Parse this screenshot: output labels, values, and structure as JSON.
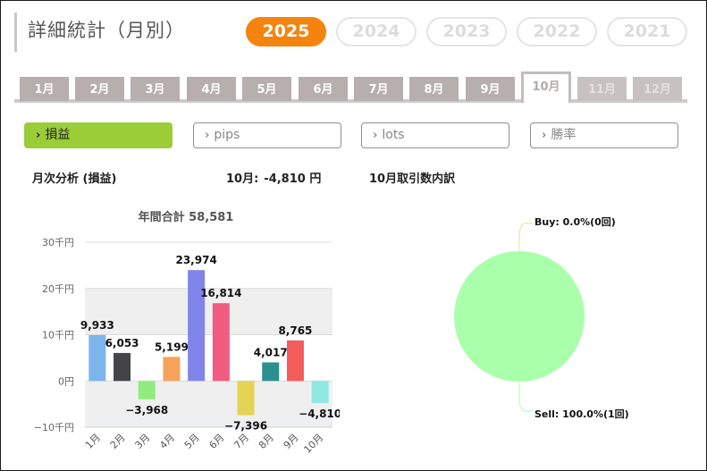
{
  "header": {
    "title": "詳細統計（月別）",
    "years": [
      {
        "label": "2025",
        "active": true
      },
      {
        "label": "2024",
        "active": false
      },
      {
        "label": "2023",
        "active": false
      },
      {
        "label": "2022",
        "active": false
      },
      {
        "label": "2021",
        "active": false
      }
    ]
  },
  "months": [
    {
      "label": "1月",
      "state": "normal"
    },
    {
      "label": "2月",
      "state": "normal"
    },
    {
      "label": "3月",
      "state": "normal"
    },
    {
      "label": "4月",
      "state": "normal"
    },
    {
      "label": "5月",
      "state": "normal"
    },
    {
      "label": "6月",
      "state": "normal"
    },
    {
      "label": "7月",
      "state": "normal"
    },
    {
      "label": "8月",
      "state": "normal"
    },
    {
      "label": "9月",
      "state": "normal"
    },
    {
      "label": "10月",
      "state": "active"
    },
    {
      "label": "11月",
      "state": "future"
    },
    {
      "label": "12月",
      "state": "future"
    }
  ],
  "metrics": [
    {
      "label": "損益",
      "active": true
    },
    {
      "label": "pips",
      "active": false
    },
    {
      "label": "lots",
      "active": false
    },
    {
      "label": "勝率",
      "active": false
    }
  ],
  "sections": {
    "monthly_analysis": "月次分析 (損益)",
    "month_label": "10月:",
    "month_value": "-4,810 円",
    "breakdown_title": "10月取引数内訳"
  },
  "chart_data": [
    {
      "type": "bar",
      "title": "年間合計 58,581",
      "categories": [
        "1月",
        "2月",
        "3月",
        "4月",
        "5月",
        "6月",
        "7月",
        "8月",
        "9月",
        "10月"
      ],
      "values": [
        9933,
        6053,
        -3968,
        5199,
        23974,
        16814,
        -7396,
        4017,
        8765,
        -4810
      ],
      "value_labels": [
        "9,933",
        "6,053",
        "−3,968",
        "5,199",
        "23,974",
        "16,814",
        "−7,396",
        "4,017",
        "8,765",
        "−4,810"
      ],
      "colors": [
        "#7cb5ec",
        "#434348",
        "#90ed7d",
        "#f7a35c",
        "#8085e9",
        "#f15c80",
        "#e4d354",
        "#2b908f",
        "#f45b5b",
        "#91e8e1"
      ],
      "ylim": [
        -10000,
        30000
      ],
      "y_ticks": [
        {
          "value": 30000,
          "label": "30千円"
        },
        {
          "value": 20000,
          "label": "20千円"
        },
        {
          "value": 10000,
          "label": "10千円"
        },
        {
          "value": 0,
          "label": "0円"
        },
        {
          "value": -10000,
          "label": "−10千円"
        }
      ],
      "grid": true
    },
    {
      "type": "pie",
      "slices": [
        {
          "name": "Buy",
          "value": 0,
          "label": "Buy: 0.0%(0回)",
          "color": "#f7a35c"
        },
        {
          "name": "Sell",
          "value": 100,
          "label": "Sell: 100.0%(1回)",
          "color": "#aaffaa"
        }
      ]
    }
  ]
}
